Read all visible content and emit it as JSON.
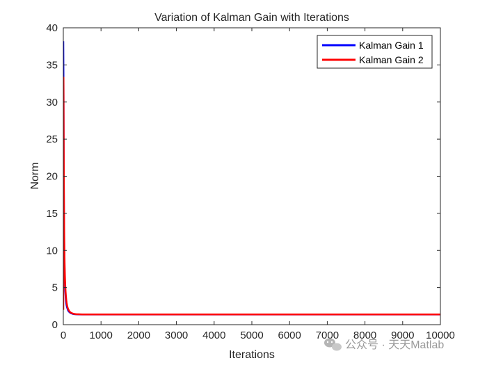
{
  "chart_data": {
    "type": "line",
    "title": "Variation of Kalman Gain with Iterations",
    "xlabel": "Iterations",
    "ylabel": "Norm",
    "xlim": [
      0,
      10000
    ],
    "ylim": [
      0,
      40
    ],
    "xticks": [
      0,
      1000,
      2000,
      3000,
      4000,
      5000,
      6000,
      7000,
      8000,
      9000,
      10000
    ],
    "yticks": [
      0,
      5,
      10,
      15,
      20,
      25,
      30,
      35,
      40
    ],
    "grid": false,
    "legend_position": "top-right",
    "series": [
      {
        "name": "Kalman Gain 1",
        "color": "#0000ff",
        "x": [
          0,
          5,
          10,
          15,
          20,
          25,
          30,
          35,
          40,
          45,
          50,
          60,
          70,
          80,
          90,
          100,
          120,
          140,
          160,
          180,
          200,
          250,
          300,
          350,
          400,
          500,
          700,
          1000,
          2000,
          3000,
          4000,
          5000,
          6000,
          7000,
          8000,
          9000,
          10000
        ],
        "y": [
          38.2,
          33.2,
          24.0,
          17.6,
          13.3,
          10.4,
          8.4,
          7.0,
          6.0,
          5.2,
          4.6,
          3.8,
          3.2,
          2.8,
          2.5,
          2.3,
          2.0,
          1.8,
          1.7,
          1.62,
          1.55,
          1.45,
          1.41,
          1.39,
          1.38,
          1.37,
          1.37,
          1.37,
          1.37,
          1.37,
          1.37,
          1.37,
          1.37,
          1.37,
          1.37,
          1.37,
          1.37
        ]
      },
      {
        "name": "Kalman Gain 2",
        "color": "#ff0000",
        "x": [
          0,
          5,
          10,
          15,
          20,
          25,
          30,
          35,
          40,
          45,
          50,
          60,
          70,
          80,
          90,
          100,
          120,
          140,
          160,
          180,
          200,
          250,
          300,
          350,
          400,
          500,
          700,
          1000,
          2000,
          3000,
          4000,
          5000,
          6000,
          7000,
          8000,
          9000,
          10000
        ],
        "y": [
          2.0,
          33.3,
          25.5,
          19.5,
          15.2,
          12.1,
          9.9,
          8.3,
          7.1,
          6.2,
          5.5,
          4.5,
          3.8,
          3.3,
          2.9,
          2.6,
          2.2,
          2.0,
          1.8,
          1.7,
          1.62,
          1.5,
          1.44,
          1.41,
          1.4,
          1.38,
          1.38,
          1.38,
          1.38,
          1.38,
          1.38,
          1.38,
          1.38,
          1.38,
          1.38,
          1.38,
          1.38
        ]
      }
    ]
  },
  "watermark": {
    "text": "公众号 · 天天Matlab",
    "icon": "wechat-icon"
  }
}
